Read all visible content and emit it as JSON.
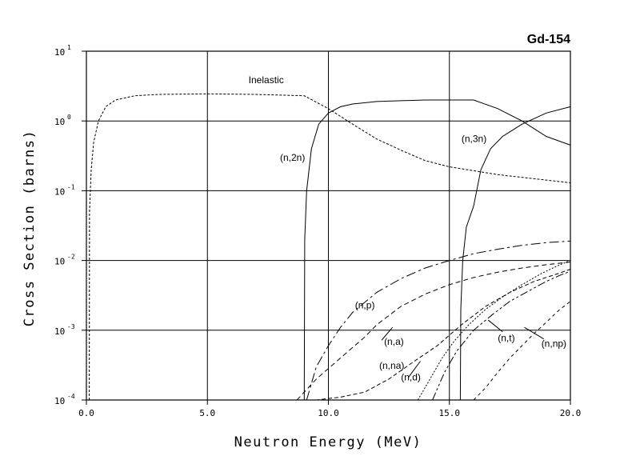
{
  "chart_data": {
    "type": "line",
    "title": "Gd-154",
    "xlabel": "Neutron Energy (MeV)",
    "ylabel": "Cross Section (barns)",
    "xlim": [
      0,
      20
    ],
    "ylim": [
      0.0001,
      10
    ],
    "yscale": "log",
    "grid": true,
    "x_ticks": [
      "0.0",
      "5.0",
      "10.0",
      "15.0",
      "20.0"
    ],
    "y_ticks": [
      {
        "base": "10",
        "exp": "-4"
      },
      {
        "base": "10",
        "exp": "-3"
      },
      {
        "base": "10",
        "exp": "-2"
      },
      {
        "base": "10",
        "exp": "-1"
      },
      {
        "base": "10",
        "exp": "0"
      },
      {
        "base": "10",
        "exp": "1"
      }
    ],
    "series": [
      {
        "name": "Inelastic",
        "dash": "3,2",
        "x": [
          0.12,
          0.13,
          0.2,
          0.3,
          0.5,
          0.8,
          1.2,
          2,
          3,
          5,
          7,
          9,
          10,
          11,
          12,
          13,
          14,
          15,
          17,
          20
        ],
        "y": [
          0.0001,
          0.05,
          0.2,
          0.5,
          1.0,
          1.6,
          2.0,
          2.3,
          2.4,
          2.45,
          2.4,
          2.3,
          1.5,
          0.9,
          0.55,
          0.38,
          0.27,
          0.22,
          0.17,
          0.13
        ]
      },
      {
        "name": "(n,2n)",
        "dash": "",
        "x": [
          9.0,
          9.02,
          9.1,
          9.3,
          9.6,
          10.0,
          10.5,
          11,
          12,
          13,
          14,
          15,
          16,
          17,
          18,
          19,
          20
        ],
        "y": [
          0.0001,
          0.02,
          0.1,
          0.4,
          0.9,
          1.3,
          1.6,
          1.75,
          1.9,
          1.95,
          2.0,
          2.0,
          2.0,
          1.5,
          1.0,
          0.6,
          0.45
        ]
      },
      {
        "name": "(n,3n)",
        "dash": "",
        "x": [
          15.45,
          15.47,
          15.55,
          15.7,
          16.0,
          16.3,
          16.7,
          17.2,
          18,
          19,
          20
        ],
        "y": [
          0.0001,
          0.002,
          0.01,
          0.03,
          0.06,
          0.2,
          0.4,
          0.6,
          0.9,
          1.3,
          1.6
        ]
      },
      {
        "name": "(n,p)",
        "dash": "12,4,3,4",
        "x": [
          9.1,
          9.5,
          10,
          10.5,
          11,
          12,
          13,
          14,
          15,
          16,
          17,
          18,
          19,
          20
        ],
        "y": [
          0.0001,
          0.0003,
          0.0006,
          0.0011,
          0.0018,
          0.0035,
          0.0055,
          0.0078,
          0.01,
          0.0125,
          0.0145,
          0.0165,
          0.018,
          0.019
        ]
      },
      {
        "name": "(n,a)",
        "dash": "6,4",
        "x": [
          8.7,
          9.5,
          10.5,
          11.5,
          12,
          13,
          14,
          15,
          16,
          17,
          18,
          19,
          20
        ],
        "y": [
          0.0001,
          0.0002,
          0.0004,
          0.0008,
          0.0012,
          0.0022,
          0.0033,
          0.0045,
          0.0057,
          0.0068,
          0.0078,
          0.0087,
          0.0095
        ]
      },
      {
        "name": "(n,na)",
        "dash": "5,3",
        "x": [
          8.4,
          9.5,
          10.5,
          11.5,
          12.5,
          13.5,
          14.5,
          15.5,
          16.5,
          17.5,
          18.5,
          19.5,
          20
        ],
        "y": [
          0.0001,
          0.0001,
          0.00011,
          0.00013,
          0.0002,
          0.00035,
          0.0006,
          0.0012,
          0.0022,
          0.0035,
          0.005,
          0.0065,
          0.0075
        ]
      },
      {
        "name": "(n,d)",
        "dash": "2,2",
        "x": [
          13.7,
          14.2,
          14.7,
          15.2,
          15.8,
          16.5,
          17.2,
          18,
          18.8,
          19.5,
          20
        ],
        "y": [
          0.0001,
          0.0002,
          0.0004,
          0.0007,
          0.0012,
          0.002,
          0.003,
          0.0045,
          0.0065,
          0.0085,
          0.01
        ]
      },
      {
        "name": "(n,t)",
        "dash": "10,3,3,3,3,3",
        "x": [
          14.3,
          14.8,
          15.3,
          16,
          16.8,
          17.5,
          18.3,
          19,
          19.6,
          20
        ],
        "y": [
          0.0001,
          0.00025,
          0.0005,
          0.001,
          0.0017,
          0.0026,
          0.0037,
          0.005,
          0.0062,
          0.007
        ]
      },
      {
        "name": "(n,np)",
        "dash": "4,4",
        "x": [
          16.0,
          16.5,
          17,
          17.5,
          18,
          18.5,
          19,
          19.5,
          20
        ],
        "y": [
          0.0001,
          0.00015,
          0.00025,
          0.0004,
          0.0006,
          0.0009,
          0.0013,
          0.0019,
          0.0026
        ]
      }
    ],
    "annotations": [
      {
        "text": "Inelastic",
        "x": 6.7,
        "y": 3.5
      },
      {
        "text": "(n,2n)",
        "x": 8.0,
        "y": 0.27
      },
      {
        "text": "(n,3n)",
        "x": 15.5,
        "y": 0.5
      },
      {
        "text": "(n,p)",
        "x": 11.1,
        "y": 0.00205
      },
      {
        "text": "(n,a)",
        "x": 12.3,
        "y": 0.00062
      },
      {
        "text": "(n,na)",
        "x": 12.1,
        "y": 0.00028
      },
      {
        "text": "(n,d)",
        "x": 13.0,
        "y": 0.00019
      },
      {
        "text": "(n,t)",
        "x": 17.0,
        "y": 0.0007
      },
      {
        "text": "(n,np)",
        "x": 18.8,
        "y": 0.00058
      }
    ]
  }
}
